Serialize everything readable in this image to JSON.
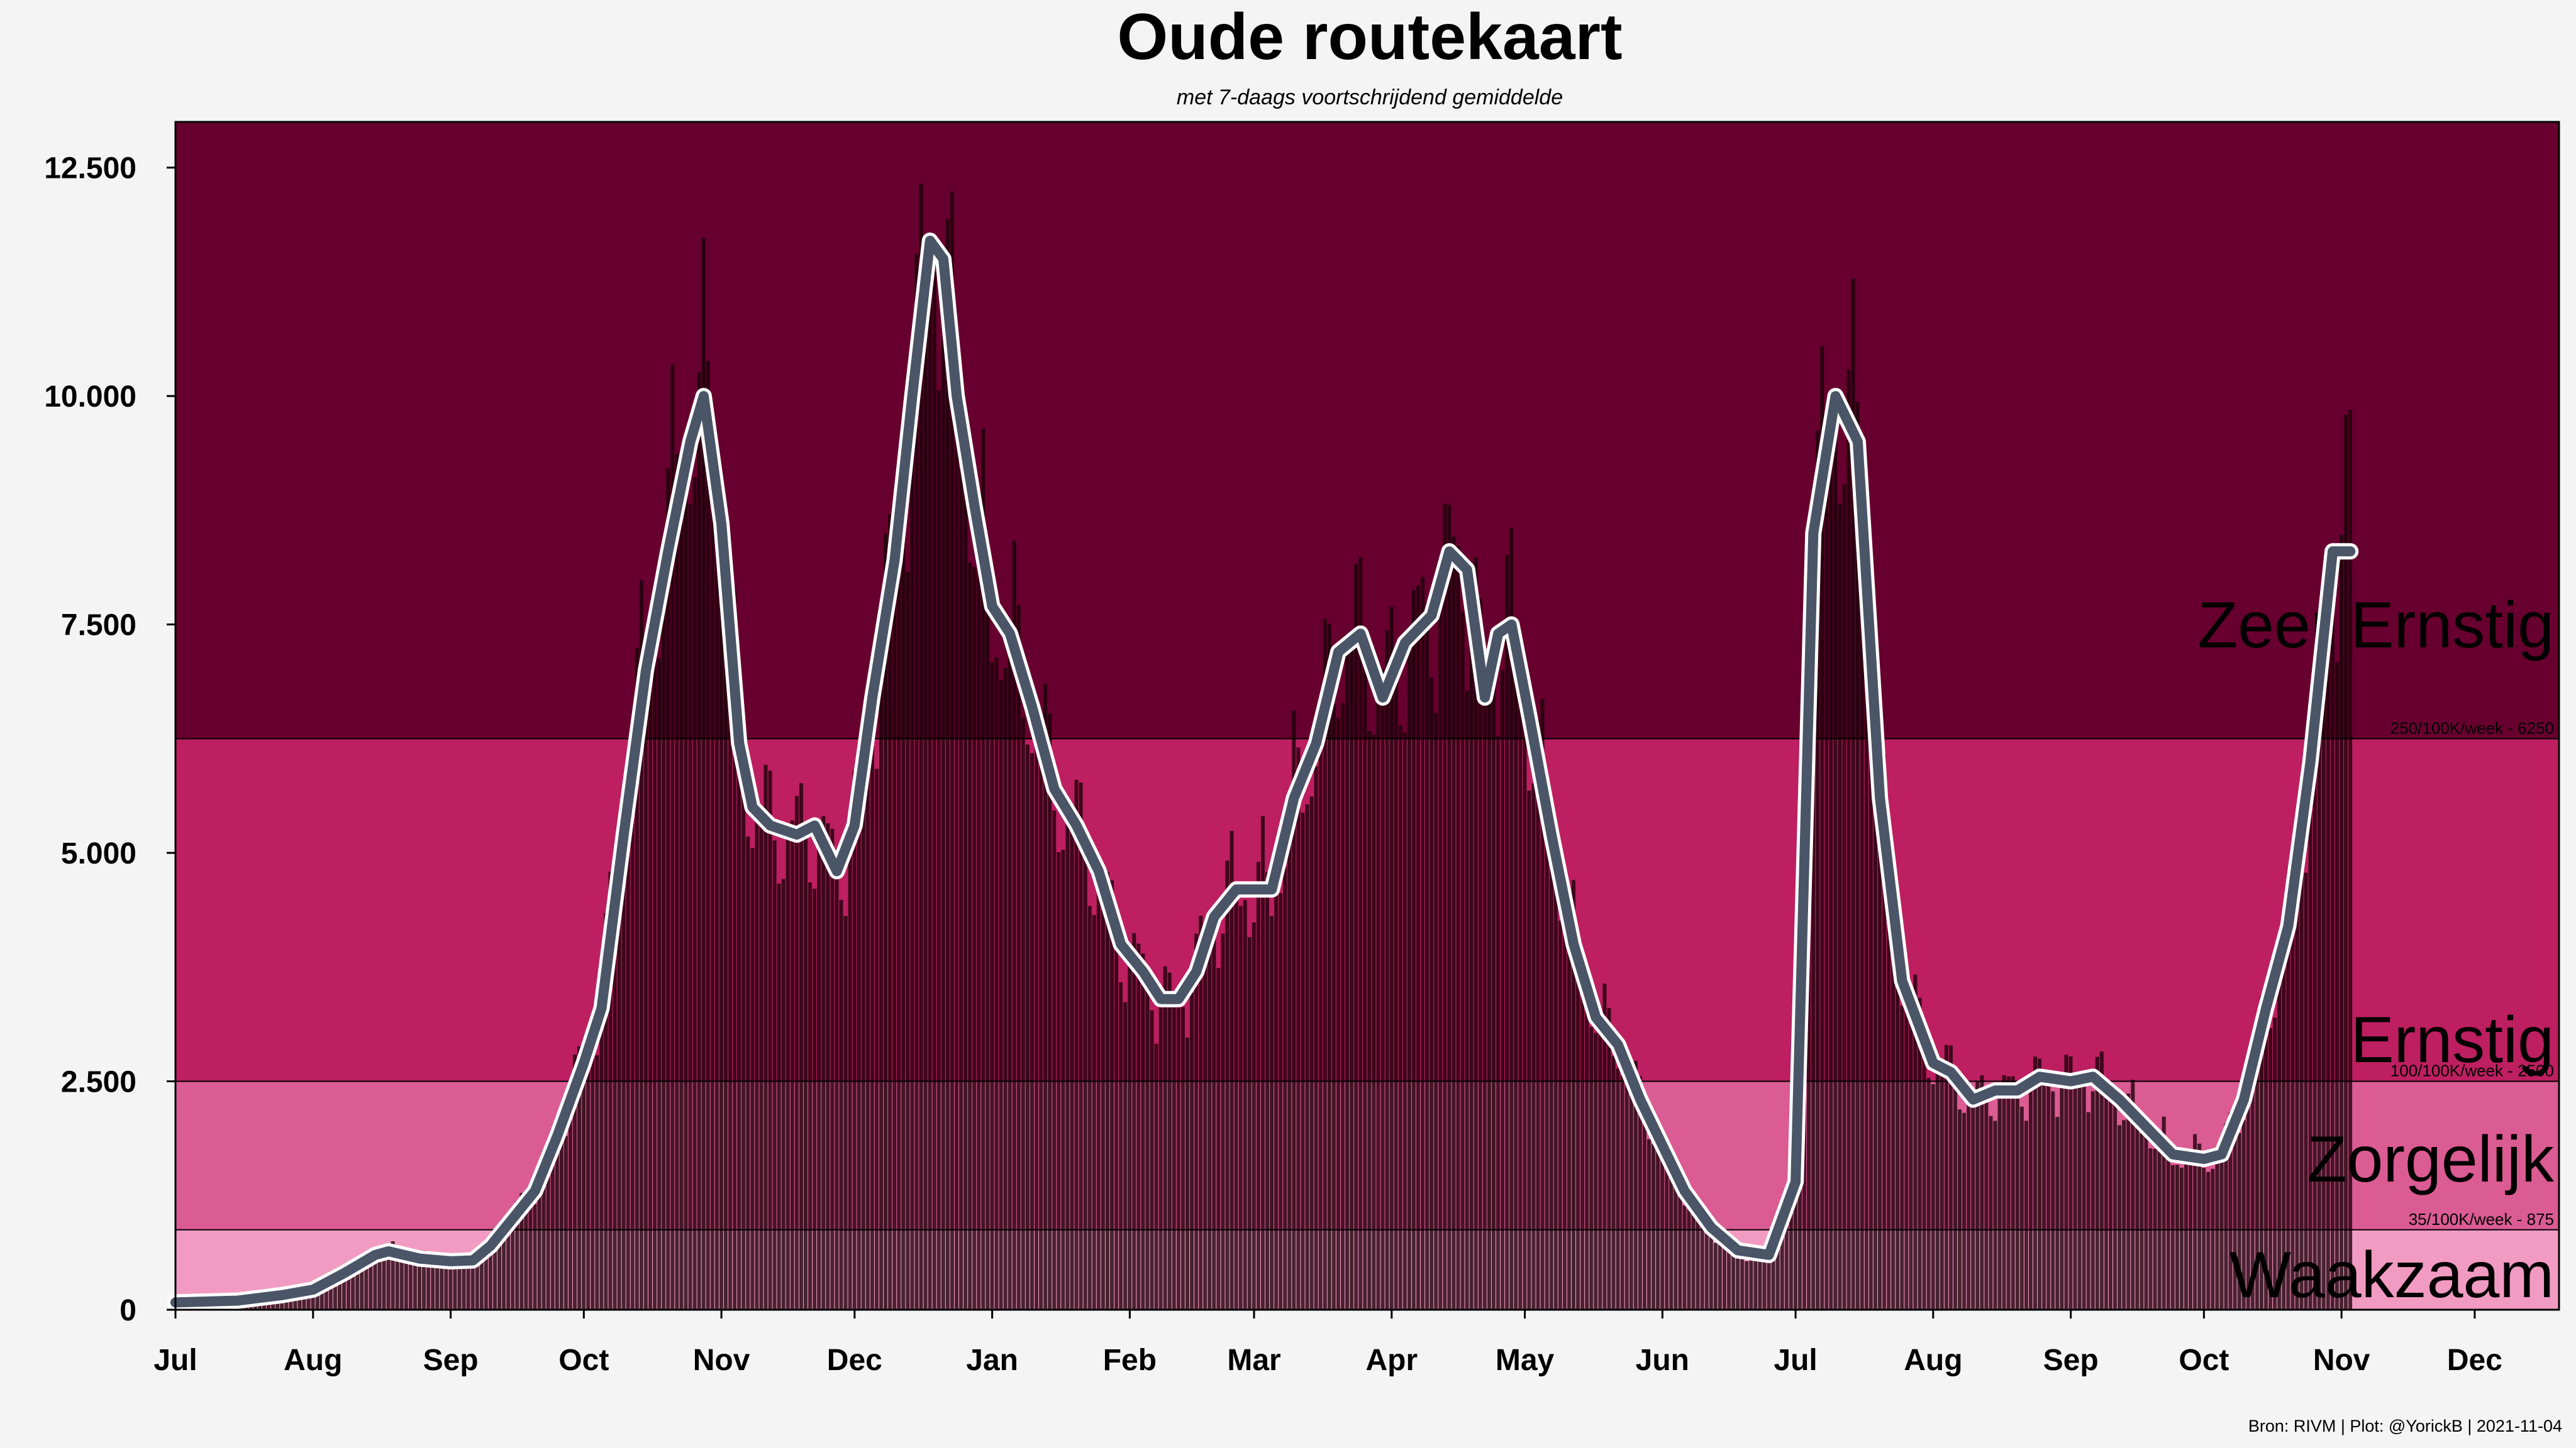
{
  "chart_data": {
    "type": "bar",
    "title": "Oude routekaart",
    "subtitle": "met 7-daags voortschrijdend gemiddelde",
    "source": "Bron: RIVM | Plot: @YorickB  |  2021-11-04",
    "xlabel": "",
    "ylabel": "",
    "ylim": [
      0,
      13000
    ],
    "x_range": [
      "2020-07-01",
      "2021-12-20"
    ],
    "grid": false,
    "y_ticks": [
      {
        "value": 0,
        "label": "0"
      },
      {
        "value": 2500,
        "label": "2.500"
      },
      {
        "value": 5000,
        "label": "5.000"
      },
      {
        "value": 7500,
        "label": "7.500"
      },
      {
        "value": 10000,
        "label": "10.000"
      },
      {
        "value": 12500,
        "label": "12.500"
      }
    ],
    "x_ticks": [
      {
        "date": "2020-07-01",
        "label": "Jul"
      },
      {
        "date": "2020-08-01",
        "label": "Aug"
      },
      {
        "date": "2020-09-01",
        "label": "Sep"
      },
      {
        "date": "2020-10-01",
        "label": "Oct"
      },
      {
        "date": "2020-11-01",
        "label": "Nov"
      },
      {
        "date": "2020-12-01",
        "label": "Dec"
      },
      {
        "date": "2021-01-01",
        "label": "Jan"
      },
      {
        "date": "2021-02-01",
        "label": "Feb"
      },
      {
        "date": "2021-03-01",
        "label": "Mar"
      },
      {
        "date": "2021-04-01",
        "label": "Apr"
      },
      {
        "date": "2021-05-01",
        "label": "May"
      },
      {
        "date": "2021-06-01",
        "label": "Jun"
      },
      {
        "date": "2021-07-01",
        "label": "Jul"
      },
      {
        "date": "2021-08-01",
        "label": "Aug"
      },
      {
        "date": "2021-09-01",
        "label": "Sep"
      },
      {
        "date": "2021-10-01",
        "label": "Oct"
      },
      {
        "date": "2021-11-01",
        "label": "Nov"
      },
      {
        "date": "2021-12-01",
        "label": "Dec"
      }
    ],
    "zones": [
      {
        "name": "Waakzaam",
        "from": 0,
        "to": 875,
        "color": "#f29bc2",
        "threshold_label": "35/100K/week - 875"
      },
      {
        "name": "Zorgelijk",
        "from": 875,
        "to": 2500,
        "color": "#db5b93",
        "threshold_label": "100/100K/week - 2500"
      },
      {
        "name": "Ernstig",
        "from": 2500,
        "to": 6250,
        "color": "#bd1f60",
        "threshold_label": "250/100K/week - 6250"
      },
      {
        "name": "Zeer Ernstig",
        "from": 6250,
        "to": 13000,
        "color": "#67002e",
        "threshold_label": ""
      }
    ],
    "series": [
      {
        "type": "bar",
        "values_anchor_daily": [
          [
            "2020-07-01",
            80
          ],
          [
            "2020-07-15",
            110
          ],
          [
            "2020-07-25",
            170
          ],
          [
            "2020-08-01",
            220
          ],
          [
            "2020-08-08",
            400
          ],
          [
            "2020-08-15",
            600
          ],
          [
            "2020-08-18",
            650
          ],
          [
            "2020-08-25",
            560
          ],
          [
            "2020-09-01",
            530
          ],
          [
            "2020-09-06",
            540
          ],
          [
            "2020-09-10",
            700
          ],
          [
            "2020-09-15",
            1050
          ],
          [
            "2020-09-20",
            1350
          ],
          [
            "2020-09-25",
            2000
          ],
          [
            "2020-10-01",
            2800
          ],
          [
            "2020-10-05",
            3500
          ],
          [
            "2020-10-10",
            5500
          ],
          [
            "2020-10-15",
            7300
          ],
          [
            "2020-10-20",
            8600
          ],
          [
            "2020-10-25",
            9700
          ],
          [
            "2020-10-28",
            10000
          ],
          [
            "2020-11-01",
            8800
          ],
          [
            "2020-11-05",
            6200
          ],
          [
            "2020-11-08",
            5500
          ],
          [
            "2020-11-12",
            5300
          ],
          [
            "2020-11-18",
            5200
          ],
          [
            "2020-11-22",
            5300
          ],
          [
            "2020-11-27",
            4800
          ],
          [
            "2020-12-01",
            5400
          ],
          [
            "2020-12-05",
            6800
          ],
          [
            "2020-12-10",
            8200
          ],
          [
            "2020-12-14",
            10000
          ],
          [
            "2020-12-18",
            11700
          ],
          [
            "2020-12-21",
            11500
          ],
          [
            "2020-12-24",
            10000
          ],
          [
            "2020-12-28",
            8800
          ],
          [
            "2021-01-01",
            7600
          ],
          [
            "2021-01-05",
            7400
          ],
          [
            "2021-01-10",
            6600
          ],
          [
            "2021-01-15",
            5700
          ],
          [
            "2021-01-20",
            5300
          ],
          [
            "2021-01-25",
            4800
          ],
          [
            "2021-01-30",
            4000
          ],
          [
            "2021-02-04",
            3700
          ],
          [
            "2021-02-08",
            3400
          ],
          [
            "2021-02-12",
            3400
          ],
          [
            "2021-02-16",
            3700
          ],
          [
            "2021-02-20",
            4300
          ],
          [
            "2021-02-25",
            4600
          ],
          [
            "2021-03-01",
            4600
          ],
          [
            "2021-03-05",
            4600
          ],
          [
            "2021-03-10",
            5600
          ],
          [
            "2021-03-15",
            6200
          ],
          [
            "2021-03-20",
            7200
          ],
          [
            "2021-03-25",
            7400
          ],
          [
            "2021-03-30",
            6800
          ],
          [
            "2021-04-04",
            7300
          ],
          [
            "2021-04-10",
            7600
          ],
          [
            "2021-04-14",
            8200
          ],
          [
            "2021-04-18",
            8100
          ],
          [
            "2021-04-22",
            6700
          ],
          [
            "2021-04-25",
            7400
          ],
          [
            "2021-04-28",
            7500
          ],
          [
            "2021-05-02",
            6500
          ],
          [
            "2021-05-07",
            5200
          ],
          [
            "2021-05-12",
            4000
          ],
          [
            "2021-05-17",
            3200
          ],
          [
            "2021-05-22",
            2900
          ],
          [
            "2021-05-27",
            2300
          ],
          [
            "2021-06-01",
            1800
          ],
          [
            "2021-06-06",
            1300
          ],
          [
            "2021-06-12",
            900
          ],
          [
            "2021-06-18",
            650
          ],
          [
            "2021-06-25",
            600
          ],
          [
            "2021-07-01",
            1400
          ],
          [
            "2021-07-05",
            8500
          ],
          [
            "2021-07-10",
            10000
          ],
          [
            "2021-07-15",
            9500
          ],
          [
            "2021-07-20",
            5600
          ],
          [
            "2021-07-25",
            3600
          ],
          [
            "2021-08-01",
            2700
          ],
          [
            "2021-08-05",
            2600
          ],
          [
            "2021-08-10",
            2300
          ],
          [
            "2021-08-15",
            2400
          ],
          [
            "2021-08-20",
            2400
          ],
          [
            "2021-08-25",
            2550
          ],
          [
            "2021-09-01",
            2500
          ],
          [
            "2021-09-06",
            2550
          ],
          [
            "2021-09-12",
            2300
          ],
          [
            "2021-09-18",
            2000
          ],
          [
            "2021-09-24",
            1700
          ],
          [
            "2021-10-01",
            1650
          ],
          [
            "2021-10-05",
            1700
          ],
          [
            "2021-10-10",
            2300
          ],
          [
            "2021-10-15",
            3300
          ],
          [
            "2021-10-20",
            4200
          ],
          [
            "2021-10-25",
            6000
          ],
          [
            "2021-10-30",
            8300
          ],
          [
            "2021-11-03",
            9000
          ]
        ]
      },
      {
        "type": "line",
        "name": "7-daags voortschrijdend gemiddelde",
        "color": "#4a5568",
        "outline_color": "#ffffff",
        "points": [
          [
            "2020-07-01",
            80
          ],
          [
            "2020-07-15",
            100
          ],
          [
            "2020-07-25",
            160
          ],
          [
            "2020-08-01",
            220
          ],
          [
            "2020-08-08",
            400
          ],
          [
            "2020-08-15",
            600
          ],
          [
            "2020-08-18",
            640
          ],
          [
            "2020-08-25",
            560
          ],
          [
            "2020-09-01",
            530
          ],
          [
            "2020-09-06",
            540
          ],
          [
            "2020-09-10",
            700
          ],
          [
            "2020-09-15",
            1000
          ],
          [
            "2020-09-20",
            1300
          ],
          [
            "2020-09-25",
            1900
          ],
          [
            "2020-10-01",
            2700
          ],
          [
            "2020-10-05",
            3300
          ],
          [
            "2020-10-10",
            5200
          ],
          [
            "2020-10-15",
            7000
          ],
          [
            "2020-10-20",
            8300
          ],
          [
            "2020-10-25",
            9500
          ],
          [
            "2020-10-28",
            10000
          ],
          [
            "2020-11-01",
            8600
          ],
          [
            "2020-11-05",
            6200
          ],
          [
            "2020-11-08",
            5500
          ],
          [
            "2020-11-12",
            5300
          ],
          [
            "2020-11-18",
            5200
          ],
          [
            "2020-11-22",
            5300
          ],
          [
            "2020-11-27",
            4800
          ],
          [
            "2020-12-01",
            5300
          ],
          [
            "2020-12-05",
            6700
          ],
          [
            "2020-12-10",
            8200
          ],
          [
            "2020-12-14",
            10000
          ],
          [
            "2020-12-18",
            11700
          ],
          [
            "2020-12-21",
            11500
          ],
          [
            "2020-12-24",
            10000
          ],
          [
            "2020-12-28",
            8800
          ],
          [
            "2021-01-01",
            7700
          ],
          [
            "2021-01-05",
            7400
          ],
          [
            "2021-01-10",
            6600
          ],
          [
            "2021-01-15",
            5700
          ],
          [
            "2021-01-20",
            5300
          ],
          [
            "2021-01-25",
            4800
          ],
          [
            "2021-01-30",
            4000
          ],
          [
            "2021-02-04",
            3700
          ],
          [
            "2021-02-08",
            3400
          ],
          [
            "2021-02-12",
            3400
          ],
          [
            "2021-02-16",
            3700
          ],
          [
            "2021-02-20",
            4300
          ],
          [
            "2021-02-25",
            4600
          ],
          [
            "2021-03-01",
            4600
          ],
          [
            "2021-03-05",
            4600
          ],
          [
            "2021-03-10",
            5600
          ],
          [
            "2021-03-15",
            6200
          ],
          [
            "2021-03-20",
            7200
          ],
          [
            "2021-03-25",
            7400
          ],
          [
            "2021-03-30",
            6700
          ],
          [
            "2021-04-04",
            7300
          ],
          [
            "2021-04-10",
            7600
          ],
          [
            "2021-04-14",
            8300
          ],
          [
            "2021-04-18",
            8100
          ],
          [
            "2021-04-22",
            6700
          ],
          [
            "2021-04-25",
            7400
          ],
          [
            "2021-04-28",
            7500
          ],
          [
            "2021-05-02",
            6500
          ],
          [
            "2021-05-07",
            5200
          ],
          [
            "2021-05-12",
            4000
          ],
          [
            "2021-05-17",
            3200
          ],
          [
            "2021-05-22",
            2900
          ],
          [
            "2021-05-27",
            2300
          ],
          [
            "2021-06-01",
            1800
          ],
          [
            "2021-06-06",
            1300
          ],
          [
            "2021-06-12",
            900
          ],
          [
            "2021-06-18",
            650
          ],
          [
            "2021-06-25",
            600
          ],
          [
            "2021-07-01",
            1400
          ],
          [
            "2021-07-05",
            8500
          ],
          [
            "2021-07-10",
            10000
          ],
          [
            "2021-07-15",
            9500
          ],
          [
            "2021-07-20",
            5600
          ],
          [
            "2021-07-25",
            3600
          ],
          [
            "2021-08-01",
            2700
          ],
          [
            "2021-08-05",
            2600
          ],
          [
            "2021-08-10",
            2300
          ],
          [
            "2021-08-15",
            2400
          ],
          [
            "2021-08-20",
            2400
          ],
          [
            "2021-08-25",
            2550
          ],
          [
            "2021-09-01",
            2500
          ],
          [
            "2021-09-06",
            2550
          ],
          [
            "2021-09-12",
            2300
          ],
          [
            "2021-09-18",
            2000
          ],
          [
            "2021-09-24",
            1700
          ],
          [
            "2021-10-01",
            1650
          ],
          [
            "2021-10-05",
            1700
          ],
          [
            "2021-10-10",
            2300
          ],
          [
            "2021-10-15",
            3300
          ],
          [
            "2021-10-20",
            4200
          ],
          [
            "2021-10-25",
            6000
          ],
          [
            "2021-10-30",
            8300
          ],
          [
            "2021-11-03",
            8300
          ]
        ]
      }
    ]
  }
}
